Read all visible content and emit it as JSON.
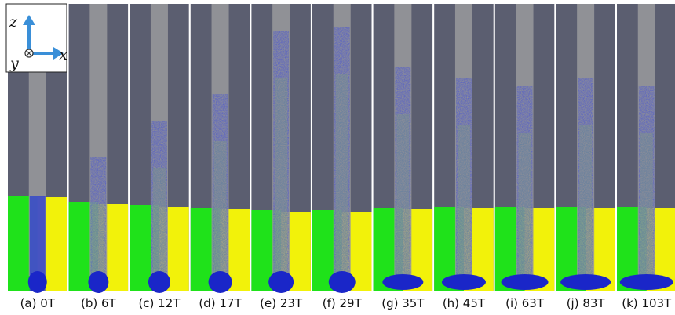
{
  "axes": {
    "z": "z",
    "x": "x",
    "y": "y"
  },
  "panels": [
    {
      "label": "(a) 0T"
    },
    {
      "label": "(b) 6T"
    },
    {
      "label": "(c) 12T"
    },
    {
      "label": "(d) 17T"
    },
    {
      "label": "(e) 23T"
    },
    {
      "label": "(f) 29T"
    },
    {
      "label": "(g) 35T"
    },
    {
      "label": "(h) 45T"
    },
    {
      "label": "(i) 63T"
    },
    {
      "label": "(j) 83T"
    },
    {
      "label": "(k) 103T"
    }
  ]
}
